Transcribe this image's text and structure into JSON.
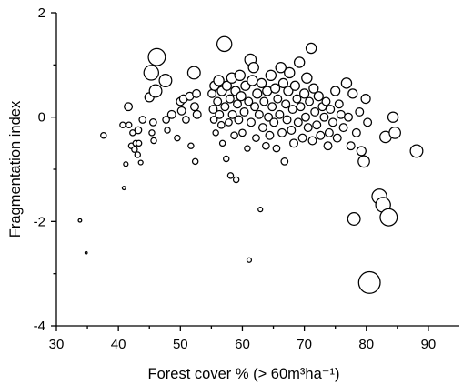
{
  "chart_data": {
    "type": "scatter",
    "title": "",
    "xlabel": "Forest cover % (> 60m³ha⁻¹)",
    "ylabel": "Fragmentation index",
    "xlim": [
      30,
      95
    ],
    "ylim": [
      -4,
      2
    ],
    "xticks": [
      "30",
      "40",
      "50",
      "60",
      "70",
      "80",
      "90"
    ],
    "yticks": [
      "2",
      "0",
      "-2",
      "-4"
    ],
    "grid": false,
    "legend": "none",
    "marker": "open-circle",
    "size_encoding": "bubble size varies per point (relative scale 1-10)",
    "points": [
      {
        "x": 33.8,
        "y": -1.98,
        "s": 1
      },
      {
        "x": 34.8,
        "y": -2.6,
        "s": 0.5
      },
      {
        "x": 37.6,
        "y": -0.35,
        "s": 2
      },
      {
        "x": 40.7,
        "y": -0.15,
        "s": 2
      },
      {
        "x": 40.9,
        "y": -1.36,
        "s": 1
      },
      {
        "x": 41.2,
        "y": -0.9,
        "s": 1.5
      },
      {
        "x": 41.6,
        "y": 0.2,
        "s": 3
      },
      {
        "x": 41.7,
        "y": -0.15,
        "s": 2
      },
      {
        "x": 42.1,
        "y": -0.55,
        "s": 2
      },
      {
        "x": 42.3,
        "y": -0.3,
        "s": 2
      },
      {
        "x": 42.6,
        "y": -0.62,
        "s": 2
      },
      {
        "x": 42.8,
        "y": -0.5,
        "s": 2
      },
      {
        "x": 43.1,
        "y": -0.72,
        "s": 2
      },
      {
        "x": 43.3,
        "y": -0.5,
        "s": 2
      },
      {
        "x": 43.6,
        "y": -0.87,
        "s": 1.5
      },
      {
        "x": 43.2,
        "y": -0.25,
        "s": 2.5
      },
      {
        "x": 43.9,
        "y": -0.05,
        "s": 2.5
      },
      {
        "x": 45.0,
        "y": 0.38,
        "s": 3.5
      },
      {
        "x": 45.3,
        "y": 0.85,
        "s": 6
      },
      {
        "x": 45.4,
        "y": -0.3,
        "s": 2
      },
      {
        "x": 45.7,
        "y": -0.45,
        "s": 2
      },
      {
        "x": 45.6,
        "y": -0.1,
        "s": 2.5
      },
      {
        "x": 46.0,
        "y": 0.5,
        "s": 5
      },
      {
        "x": 46.2,
        "y": 1.15,
        "s": 7
      },
      {
        "x": 47.6,
        "y": 0.7,
        "s": 5
      },
      {
        "x": 47.7,
        "y": -0.05,
        "s": 2.5
      },
      {
        "x": 47.9,
        "y": -0.25,
        "s": 2
      },
      {
        "x": 48.6,
        "y": 0.05,
        "s": 3
      },
      {
        "x": 49.5,
        "y": -0.4,
        "s": 2
      },
      {
        "x": 50.0,
        "y": 0.3,
        "s": 3
      },
      {
        "x": 50.2,
        "y": 0.12,
        "s": 3
      },
      {
        "x": 50.5,
        "y": 0.35,
        "s": 3
      },
      {
        "x": 50.9,
        "y": -0.05,
        "s": 2.5
      },
      {
        "x": 51.5,
        "y": 0.4,
        "s": 3
      },
      {
        "x": 51.7,
        "y": -0.55,
        "s": 2
      },
      {
        "x": 52.2,
        "y": 0.85,
        "s": 5
      },
      {
        "x": 52.3,
        "y": 0.2,
        "s": 3
      },
      {
        "x": 52.4,
        "y": -0.85,
        "s": 2
      },
      {
        "x": 52.6,
        "y": 0.45,
        "s": 3
      },
      {
        "x": 52.7,
        "y": 0.05,
        "s": 3
      },
      {
        "x": 55.1,
        "y": 0.45,
        "s": 3
      },
      {
        "x": 55.3,
        "y": 0.15,
        "s": 3
      },
      {
        "x": 55.4,
        "y": -0.05,
        "s": 2.5
      },
      {
        "x": 55.5,
        "y": 0.6,
        "s": 3.5
      },
      {
        "x": 55.7,
        "y": -0.3,
        "s": 2
      },
      {
        "x": 56.0,
        "y": 0.3,
        "s": 3
      },
      {
        "x": 56.2,
        "y": 0.7,
        "s": 4
      },
      {
        "x": 56.3,
        "y": 0.05,
        "s": 3
      },
      {
        "x": 56.6,
        "y": -0.15,
        "s": 2.5
      },
      {
        "x": 56.7,
        "y": 0.5,
        "s": 3.5
      },
      {
        "x": 56.8,
        "y": -0.5,
        "s": 2
      },
      {
        "x": 57.1,
        "y": 1.4,
        "s": 6
      },
      {
        "x": 57.2,
        "y": 0.2,
        "s": 3
      },
      {
        "x": 57.4,
        "y": -0.8,
        "s": 2
      },
      {
        "x": 57.5,
        "y": 0.6,
        "s": 3.5
      },
      {
        "x": 57.8,
        "y": -0.1,
        "s": 2.5
      },
      {
        "x": 58.0,
        "y": 0.35,
        "s": 3
      },
      {
        "x": 58.1,
        "y": -1.12,
        "s": 2
      },
      {
        "x": 58.3,
        "y": 0.75,
        "s": 4
      },
      {
        "x": 58.4,
        "y": 0.05,
        "s": 3
      },
      {
        "x": 58.7,
        "y": -0.35,
        "s": 2.5
      },
      {
        "x": 58.9,
        "y": 0.5,
        "s": 3.5
      },
      {
        "x": 59.0,
        "y": -1.2,
        "s": 2
      },
      {
        "x": 59.2,
        "y": 0.25,
        "s": 3
      },
      {
        "x": 59.4,
        "y": -0.05,
        "s": 3
      },
      {
        "x": 59.6,
        "y": 0.8,
        "s": 4
      },
      {
        "x": 59.8,
        "y": 0.4,
        "s": 3.5
      },
      {
        "x": 60.0,
        "y": -0.3,
        "s": 2.5
      },
      {
        "x": 60.3,
        "y": 0.1,
        "s": 3
      },
      {
        "x": 60.5,
        "y": 0.6,
        "s": 3.5
      },
      {
        "x": 60.8,
        "y": -0.6,
        "s": 2
      },
      {
        "x": 61.0,
        "y": 0.3,
        "s": 3
      },
      {
        "x": 61.1,
        "y": -2.74,
        "s": 1.5
      },
      {
        "x": 61.3,
        "y": 1.1,
        "s": 4.5
      },
      {
        "x": 61.4,
        "y": -0.1,
        "s": 3
      },
      {
        "x": 61.6,
        "y": 0.7,
        "s": 4
      },
      {
        "x": 61.8,
        "y": 0.95,
        "s": 4
      },
      {
        "x": 62.0,
        "y": 0.2,
        "s": 3
      },
      {
        "x": 62.2,
        "y": -0.4,
        "s": 2.5
      },
      {
        "x": 62.4,
        "y": 0.45,
        "s": 3.5
      },
      {
        "x": 62.7,
        "y": 0.05,
        "s": 3
      },
      {
        "x": 62.9,
        "y": -1.77,
        "s": 1.5
      },
      {
        "x": 63.1,
        "y": 0.65,
        "s": 3.5
      },
      {
        "x": 63.3,
        "y": -0.2,
        "s": 3
      },
      {
        "x": 63.5,
        "y": 0.3,
        "s": 3
      },
      {
        "x": 63.8,
        "y": -0.55,
        "s": 2.5
      },
      {
        "x": 64.0,
        "y": 0.5,
        "s": 3.5
      },
      {
        "x": 64.2,
        "y": 0.0,
        "s": 3
      },
      {
        "x": 64.4,
        "y": -0.35,
        "s": 3
      },
      {
        "x": 64.6,
        "y": 0.8,
        "s": 4
      },
      {
        "x": 64.8,
        "y": 0.2,
        "s": 3
      },
      {
        "x": 65.1,
        "y": -0.1,
        "s": 3
      },
      {
        "x": 65.3,
        "y": 0.55,
        "s": 3.5
      },
      {
        "x": 65.5,
        "y": -0.6,
        "s": 2.5
      },
      {
        "x": 65.7,
        "y": 0.35,
        "s": 3
      },
      {
        "x": 66.0,
        "y": 0.05,
        "s": 3
      },
      {
        "x": 66.2,
        "y": 0.95,
        "s": 4
      },
      {
        "x": 66.4,
        "y": -0.3,
        "s": 3
      },
      {
        "x": 66.6,
        "y": 0.65,
        "s": 3.5
      },
      {
        "x": 66.8,
        "y": -0.85,
        "s": 2.5
      },
      {
        "x": 67.0,
        "y": 0.25,
        "s": 3
      },
      {
        "x": 67.2,
        "y": -0.05,
        "s": 3
      },
      {
        "x": 67.4,
        "y": 0.5,
        "s": 3.5
      },
      {
        "x": 67.6,
        "y": 0.85,
        "s": 4
      },
      {
        "x": 67.9,
        "y": -0.25,
        "s": 3
      },
      {
        "x": 68.1,
        "y": 0.15,
        "s": 3
      },
      {
        "x": 68.3,
        "y": -0.5,
        "s": 3
      },
      {
        "x": 68.5,
        "y": 0.6,
        "s": 3.5
      },
      {
        "x": 68.8,
        "y": 0.35,
        "s": 3
      },
      {
        "x": 69.0,
        "y": -0.1,
        "s": 3
      },
      {
        "x": 69.2,
        "y": 1.05,
        "s": 4
      },
      {
        "x": 69.4,
        "y": 0.2,
        "s": 3
      },
      {
        "x": 69.7,
        "y": -0.4,
        "s": 3
      },
      {
        "x": 70.0,
        "y": 0.45,
        "s": 3.5
      },
      {
        "x": 70.2,
        "y": 0.0,
        "s": 3
      },
      {
        "x": 70.4,
        "y": 0.75,
        "s": 4
      },
      {
        "x": 70.6,
        "y": -0.2,
        "s": 3
      },
      {
        "x": 70.8,
        "y": 0.3,
        "s": 3
      },
      {
        "x": 71.1,
        "y": 1.32,
        "s": 4
      },
      {
        "x": 71.3,
        "y": -0.45,
        "s": 3
      },
      {
        "x": 71.5,
        "y": 0.55,
        "s": 3.5
      },
      {
        "x": 71.7,
        "y": 0.1,
        "s": 3
      },
      {
        "x": 72.0,
        "y": -0.15,
        "s": 3
      },
      {
        "x": 72.3,
        "y": 0.4,
        "s": 3.5
      },
      {
        "x": 72.6,
        "y": -0.35,
        "s": 3
      },
      {
        "x": 72.9,
        "y": 0.2,
        "s": 3
      },
      {
        "x": 73.2,
        "y": 0.0,
        "s": 3
      },
      {
        "x": 73.5,
        "y": 0.3,
        "s": 3
      },
      {
        "x": 73.8,
        "y": -0.55,
        "s": 3
      },
      {
        "x": 74.0,
        "y": -0.3,
        "s": 3
      },
      {
        "x": 74.2,
        "y": 0.15,
        "s": 3
      },
      {
        "x": 74.6,
        "y": -0.1,
        "s": 3
      },
      {
        "x": 75.0,
        "y": 0.5,
        "s": 3.5
      },
      {
        "x": 75.3,
        "y": -0.4,
        "s": 3
      },
      {
        "x": 75.6,
        "y": 0.25,
        "s": 3
      },
      {
        "x": 75.9,
        "y": 0.05,
        "s": 3
      },
      {
        "x": 76.3,
        "y": -0.2,
        "s": 3
      },
      {
        "x": 76.8,
        "y": 0.65,
        "s": 4
      },
      {
        "x": 77.1,
        "y": 0.0,
        "s": 3
      },
      {
        "x": 77.5,
        "y": -0.55,
        "s": 3
      },
      {
        "x": 77.8,
        "y": 0.45,
        "s": 3.5
      },
      {
        "x": 78.0,
        "y": -1.95,
        "s": 5
      },
      {
        "x": 78.4,
        "y": -0.3,
        "s": 3
      },
      {
        "x": 78.9,
        "y": 0.1,
        "s": 3
      },
      {
        "x": 79.2,
        "y": -0.65,
        "s": 3.5
      },
      {
        "x": 79.6,
        "y": -0.85,
        "s": 4.5
      },
      {
        "x": 79.9,
        "y": 0.35,
        "s": 3.5
      },
      {
        "x": 80.2,
        "y": -0.1,
        "s": 3
      },
      {
        "x": 80.5,
        "y": -3.17,
        "s": 9
      },
      {
        "x": 82.1,
        "y": -1.52,
        "s": 6
      },
      {
        "x": 82.7,
        "y": -1.68,
        "s": 6
      },
      {
        "x": 83.1,
        "y": -0.38,
        "s": 4.5
      },
      {
        "x": 83.6,
        "y": -1.92,
        "s": 7
      },
      {
        "x": 84.3,
        "y": 0.0,
        "s": 4
      },
      {
        "x": 84.6,
        "y": -0.3,
        "s": 4.5
      },
      {
        "x": 88.1,
        "y": -0.65,
        "s": 5
      }
    ]
  }
}
